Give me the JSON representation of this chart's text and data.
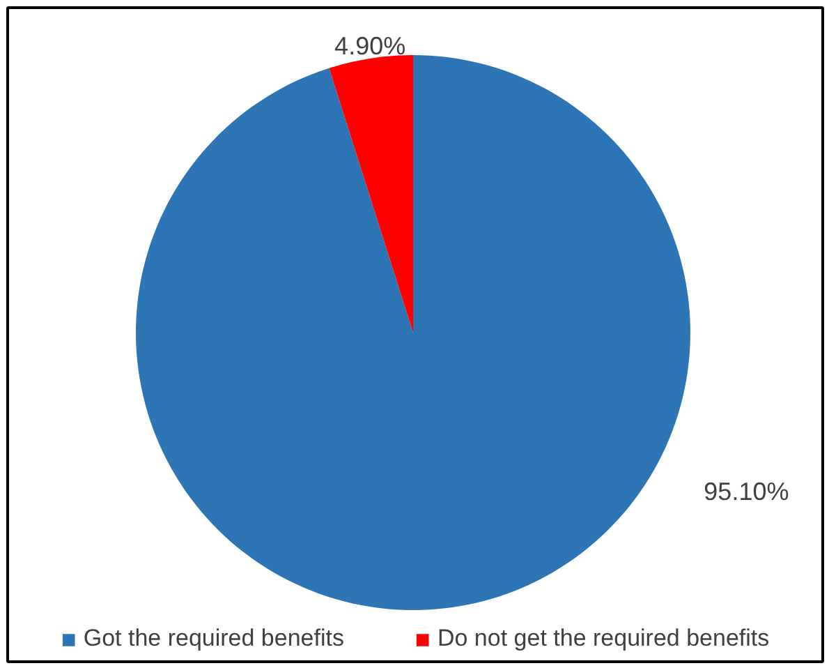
{
  "chart_data": {
    "type": "pie",
    "categories": [
      "Got the required benefits",
      "Do not get the required benefits"
    ],
    "values": [
      95.1,
      4.9
    ],
    "colors": [
      "#2e75b6",
      "#ff0000"
    ],
    "value_labels": [
      "95.10%",
      "4.90%"
    ],
    "legend": "bottom"
  }
}
